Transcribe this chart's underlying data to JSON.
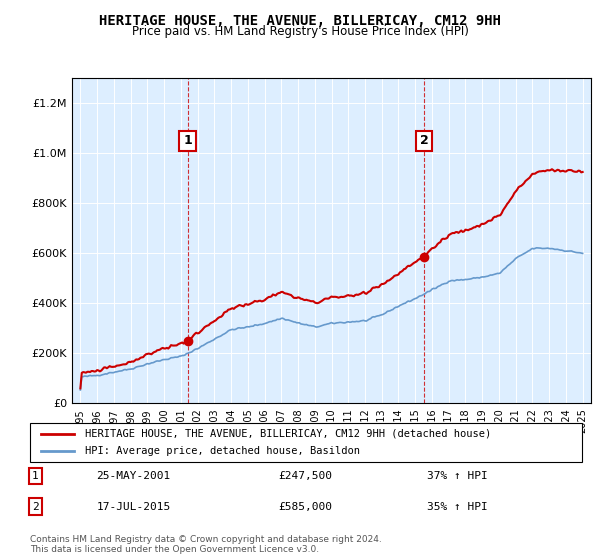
{
  "title": "HERITAGE HOUSE, THE AVENUE, BILLERICAY, CM12 9HH",
  "subtitle": "Price paid vs. HM Land Registry's House Price Index (HPI)",
  "sale1_date": "25-MAY-2001",
  "sale1_price": 247500,
  "sale1_hpi": "37% ↑ HPI",
  "sale1_label": "1",
  "sale1_year": 2001.4,
  "sale2_date": "17-JUL-2015",
  "sale2_price": 585000,
  "sale2_hpi": "35% ↑ HPI",
  "sale2_label": "2",
  "sale2_year": 2015.54,
  "legend_house": "HERITAGE HOUSE, THE AVENUE, BILLERICAY, CM12 9HH (detached house)",
  "legend_hpi": "HPI: Average price, detached house, Basildon",
  "footnote": "Contains HM Land Registry data © Crown copyright and database right 2024.\nThis data is licensed under the Open Government Licence v3.0.",
  "house_color": "#cc0000",
  "hpi_color": "#6699cc",
  "background_color": "#ddeeff",
  "ylim": [
    0,
    1300000
  ],
  "xlim_start": 1994.5,
  "xlim_end": 2025.5
}
